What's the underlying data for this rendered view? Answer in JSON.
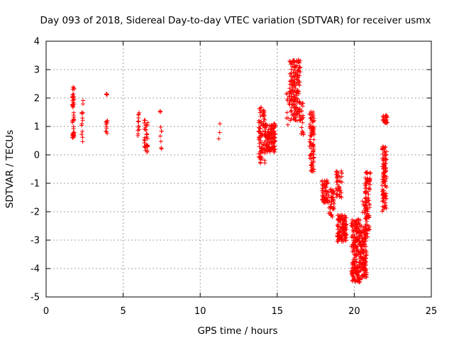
{
  "chart_data": {
    "type": "scatter",
    "title": "Day 093 of 2018, Sidereal Day-to-day VTEC variation (SDTVAR) for receiver usmx",
    "xlabel": "GPS time / hours",
    "ylabel": "SDTVAR / TECUs",
    "xlim": [
      0,
      25
    ],
    "ylim": [
      -5,
      4
    ],
    "xticks": [
      0,
      5,
      10,
      15,
      20,
      25
    ],
    "xtick_labels": [
      "0",
      "5",
      "10",
      "15",
      "20",
      "25"
    ],
    "yticks": [
      -5,
      -4,
      -3,
      -2,
      -1,
      0,
      1,
      2,
      3,
      4
    ],
    "ytick_labels": [
      "-5",
      "-4",
      "-3",
      "-2",
      "-1",
      "0",
      "1",
      "2",
      "3",
      "4"
    ],
    "grid": true,
    "marker": "+",
    "color": "#ff0000",
    "series": [
      {
        "name": "SDTVAR",
        "segments": [
          {
            "x": [
              1.7,
              1.82
            ],
            "y": [
              0.6,
              2.4
            ],
            "n": 45
          },
          {
            "x": [
              2.3,
              2.4
            ],
            "y": [
              0.25,
              1.95
            ],
            "n": 14
          },
          {
            "x": [
              3.85,
              4.0
            ],
            "y": [
              0.7,
              1.2
            ],
            "n": 10
          },
          {
            "x": [
              3.85,
              4.0
            ],
            "y": [
              2.1,
              2.2
            ],
            "n": 4
          },
          {
            "x": [
              5.95,
              6.05
            ],
            "y": [
              0.65,
              1.55
            ],
            "n": 12
          },
          {
            "x": [
              6.35,
              6.6
            ],
            "y": [
              0.1,
              1.25
            ],
            "n": 35
          },
          {
            "x": [
              7.4,
              7.5
            ],
            "y": [
              -0.05,
              1.7
            ],
            "n": 10
          },
          {
            "x": [
              11.2,
              11.3
            ],
            "y": [
              0.4,
              1.15
            ],
            "n": 3
          },
          {
            "x": [
              13.8,
              14.2
            ],
            "y": [
              -0.3,
              1.7
            ],
            "n": 90
          },
          {
            "x": [
              14.2,
              14.9
            ],
            "y": [
              0.1,
              1.1
            ],
            "n": 130
          },
          {
            "x": [
              15.5,
              15.8
            ],
            "y": [
              0.8,
              2.2
            ],
            "n": 10
          },
          {
            "x": [
              15.8,
              16.5
            ],
            "y": [
              1.2,
              3.35
            ],
            "n": 170
          },
          {
            "x": [
              16.5,
              16.7
            ],
            "y": [
              0.7,
              1.9
            ],
            "n": 20
          },
          {
            "x": [
              17.1,
              17.4
            ],
            "y": [
              -0.6,
              1.55
            ],
            "n": 90
          },
          {
            "x": [
              17.9,
              18.3
            ],
            "y": [
              -1.7,
              -0.85
            ],
            "n": 60
          },
          {
            "x": [
              18.35,
              18.7
            ],
            "y": [
              -2.2,
              -1.2
            ],
            "n": 40
          },
          {
            "x": [
              18.8,
              19.2
            ],
            "y": [
              -1.5,
              -0.55
            ],
            "n": 40
          },
          {
            "x": [
              18.9,
              19.5
            ],
            "y": [
              -3.05,
              -2.1
            ],
            "n": 120
          },
          {
            "x": [
              19.8,
              20.4
            ],
            "y": [
              -4.5,
              -2.25
            ],
            "n": 200
          },
          {
            "x": [
              20.4,
              20.8
            ],
            "y": [
              -4.35,
              -2.5
            ],
            "n": 120
          },
          {
            "x": [
              20.7,
              21.0
            ],
            "y": [
              -2.9,
              -1.5
            ],
            "n": 50
          },
          {
            "x": [
              20.5,
              20.8
            ],
            "y": [
              -2.05,
              -1.6
            ],
            "n": 15
          },
          {
            "x": [
              20.7,
              21.05
            ],
            "y": [
              -1.4,
              -0.6
            ],
            "n": 40
          },
          {
            "x": [
              21.8,
              22.1
            ],
            "y": [
              -2.0,
              0.3
            ],
            "n": 100
          },
          {
            "x": [
              21.85,
              22.15
            ],
            "y": [
              1.1,
              1.4
            ],
            "n": 25
          }
        ]
      }
    ]
  }
}
